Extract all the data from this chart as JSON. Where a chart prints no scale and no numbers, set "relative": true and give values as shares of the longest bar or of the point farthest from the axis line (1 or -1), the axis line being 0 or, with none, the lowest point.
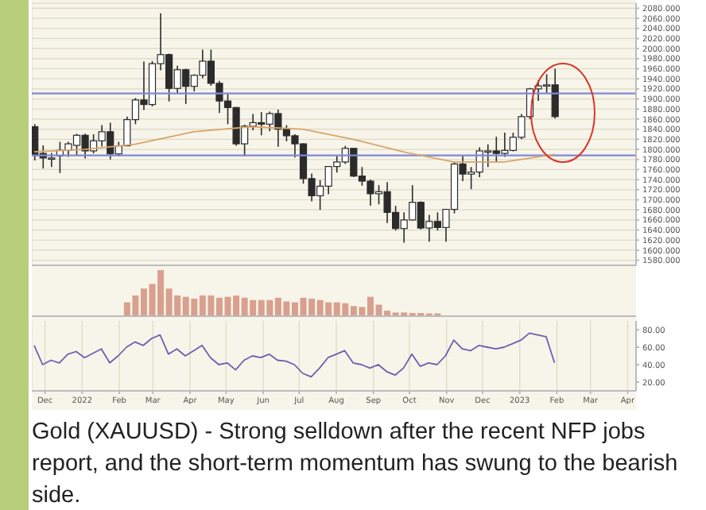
{
  "chart_data": [
    {
      "type": "candlestick",
      "x": [
        "2021-11-22",
        "2021-11-29",
        "2021-12-06",
        "2021-12-13",
        "2021-12-20",
        "2021-12-27",
        "2022-01-03",
        "2022-01-10",
        "2022-01-17",
        "2022-01-24",
        "2022-01-31",
        "2022-02-07",
        "2022-02-14",
        "2022-02-21",
        "2022-02-28",
        "2022-03-07",
        "2022-03-14",
        "2022-03-21",
        "2022-03-28",
        "2022-04-04",
        "2022-04-11",
        "2022-04-18",
        "2022-04-25",
        "2022-05-02",
        "2022-05-09",
        "2022-05-16",
        "2022-05-23",
        "2022-05-30",
        "2022-06-06",
        "2022-06-13",
        "2022-06-20",
        "2022-06-27",
        "2022-07-04",
        "2022-07-11",
        "2022-07-18",
        "2022-07-25",
        "2022-08-01",
        "2022-08-08",
        "2022-08-15",
        "2022-08-22",
        "2022-08-29",
        "2022-09-05",
        "2022-09-12",
        "2022-09-19",
        "2022-09-26",
        "2022-10-03",
        "2022-10-10",
        "2022-10-17",
        "2022-10-24",
        "2022-10-31",
        "2022-11-07",
        "2022-11-14",
        "2022-11-21",
        "2022-11-28",
        "2022-12-05",
        "2022-12-12",
        "2022-12-19",
        "2022-12-26",
        "2023-01-02",
        "2023-01-09",
        "2023-01-16",
        "2023-01-23",
        "2023-01-30"
      ],
      "ohlc": [
        [
          1845,
          1850,
          1778,
          1788
        ],
        [
          1792,
          1808,
          1762,
          1783
        ],
        [
          1783,
          1793,
          1765,
          1783
        ],
        [
          1787,
          1815,
          1753,
          1798
        ],
        [
          1798,
          1815,
          1785,
          1811
        ],
        [
          1808,
          1831,
          1789,
          1828
        ],
        [
          1828,
          1831,
          1782,
          1797
        ],
        [
          1797,
          1830,
          1792,
          1817
        ],
        [
          1817,
          1848,
          1806,
          1835
        ],
        [
          1835,
          1853,
          1780,
          1791
        ],
        [
          1791,
          1815,
          1786,
          1807
        ],
        [
          1807,
          1865,
          1807,
          1859
        ],
        [
          1859,
          1902,
          1850,
          1898
        ],
        [
          1898,
          1974,
          1878,
          1889
        ],
        [
          1889,
          1975,
          1885,
          1970
        ],
        [
          1970,
          2070,
          1957,
          1988
        ],
        [
          1988,
          1990,
          1895,
          1921
        ],
        [
          1921,
          1966,
          1910,
          1958
        ],
        [
          1958,
          1960,
          1890,
          1925
        ],
        [
          1925,
          1949,
          1915,
          1947
        ],
        [
          1947,
          1998,
          1941,
          1975
        ],
        [
          1975,
          1998,
          1926,
          1931
        ],
        [
          1931,
          1936,
          1872,
          1896
        ],
        [
          1896,
          1910,
          1850,
          1883
        ],
        [
          1883,
          1884,
          1807,
          1811
        ],
        [
          1811,
          1849,
          1786,
          1846
        ],
        [
          1846,
          1870,
          1838,
          1853
        ],
        [
          1853,
          1874,
          1828,
          1850
        ],
        [
          1850,
          1875,
          1836,
          1871
        ],
        [
          1871,
          1879,
          1805,
          1840
        ],
        [
          1840,
          1848,
          1816,
          1827
        ],
        [
          1827,
          1830,
          1784,
          1811
        ],
        [
          1811,
          1812,
          1732,
          1742
        ],
        [
          1742,
          1752,
          1697,
          1708
        ],
        [
          1708,
          1739,
          1680,
          1727
        ],
        [
          1727,
          1767,
          1711,
          1766
        ],
        [
          1766,
          1788,
          1754,
          1775
        ],
        [
          1775,
          1807,
          1771,
          1802
        ],
        [
          1802,
          1802,
          1745,
          1747
        ],
        [
          1747,
          1765,
          1728,
          1737
        ],
        [
          1737,
          1740,
          1688,
          1712
        ],
        [
          1712,
          1729,
          1691,
          1716
        ],
        [
          1716,
          1735,
          1654,
          1675
        ],
        [
          1675,
          1688,
          1639,
          1643
        ],
        [
          1643,
          1675,
          1615,
          1660
        ],
        [
          1660,
          1729,
          1659,
          1695
        ],
        [
          1695,
          1697,
          1641,
          1644
        ],
        [
          1644,
          1670,
          1617,
          1657
        ],
        [
          1657,
          1675,
          1639,
          1645
        ],
        [
          1645,
          1681,
          1617,
          1681
        ],
        [
          1681,
          1774,
          1673,
          1771
        ],
        [
          1771,
          1787,
          1737,
          1751
        ],
        [
          1751,
          1765,
          1721,
          1755
        ],
        [
          1755,
          1804,
          1745,
          1797
        ],
        [
          1797,
          1810,
          1765,
          1797
        ],
        [
          1797,
          1825,
          1774,
          1792
        ],
        [
          1792,
          1833,
          1785,
          1798
        ],
        [
          1798,
          1833,
          1796,
          1824
        ],
        [
          1824,
          1870,
          1820,
          1865
        ],
        [
          1865,
          1922,
          1860,
          1920
        ],
        [
          1920,
          1937,
          1896,
          1926
        ],
        [
          1926,
          1949,
          1912,
          1928
        ],
        [
          1928,
          1960,
          1861,
          1865
        ]
      ],
      "color": "#2b2b2b",
      "series": [
        {
          "type": "line",
          "x": [
            "2021-11-22",
            "2022-01-03",
            "2022-02-14",
            "2022-04-04",
            "2022-05-23",
            "2022-07-04",
            "2022-08-15",
            "2022-09-26",
            "2022-11-07",
            "2022-12-19",
            "2023-01-30"
          ],
          "values": [
            1795,
            1800,
            1810,
            1835,
            1845,
            1840,
            1820,
            1795,
            1775,
            1775,
            1790
          ],
          "color": "#d8a46a"
        }
      ],
      "xlim": [
        "2021-11-20",
        "2023-04-08"
      ],
      "xticks": [
        {
          "value": "2021-12-01",
          "label": null
        },
        {
          "value": "2022-01-01",
          "label": null
        },
        {
          "value": "2022-02-01",
          "label": null
        },
        {
          "value": "2022-03-01",
          "label": null
        },
        {
          "value": "2022-04-01",
          "label": null
        },
        {
          "value": "2022-05-01",
          "label": null
        },
        {
          "value": "2022-06-01",
          "label": null
        },
        {
          "value": "2022-07-01",
          "label": null
        },
        {
          "value": "2022-08-01",
          "label": null
        },
        {
          "value": "2022-09-01",
          "label": null
        },
        {
          "value": "2022-10-01",
          "label": null
        },
        {
          "value": "2022-11-01",
          "label": null
        },
        {
          "value": "2022-12-01",
          "label": null
        },
        {
          "value": "2023-01-01",
          "label": null
        },
        {
          "value": "2023-02-01",
          "label": null
        },
        {
          "value": "2023-03-01",
          "label": null
        },
        {
          "value": "2023-04-01",
          "label": null
        }
      ],
      "ylim": [
        1570,
        2090
      ],
      "yticks": [
        {
          "value": 1580,
          "label": "1580.000"
        },
        {
          "value": 1600,
          "label": "1600.000"
        },
        {
          "value": 1620,
          "label": "1620.000"
        },
        {
          "value": 1640,
          "label": "1640.000"
        },
        {
          "value": 1660,
          "label": "1660.000"
        },
        {
          "value": 1680,
          "label": "1680.000"
        },
        {
          "value": 1700,
          "label": "1700.000"
        },
        {
          "value": 1720,
          "label": "1720.000"
        },
        {
          "value": 1740,
          "label": "1740.000"
        },
        {
          "value": 1760,
          "label": "1760.000"
        },
        {
          "value": 1780,
          "label": "1780.000"
        },
        {
          "value": 1800,
          "label": "1800.000"
        },
        {
          "value": 1820,
          "label": "1820.000"
        },
        {
          "value": 1840,
          "label": "1840.000"
        },
        {
          "value": 1860,
          "label": "1860.000"
        },
        {
          "value": 1880,
          "label": "1880.000"
        },
        {
          "value": 1900,
          "label": "1900.000"
        },
        {
          "value": 1920,
          "label": "1920.000"
        },
        {
          "value": 1940,
          "label": "1940.000"
        },
        {
          "value": 1960,
          "label": "1960.000"
        },
        {
          "value": 1980,
          "label": "1980.000"
        },
        {
          "value": 2000,
          "label": "2000.000"
        },
        {
          "value": 2020,
          "label": "2020.000"
        },
        {
          "value": 2040,
          "label": "2040.000"
        },
        {
          "value": 2060,
          "label": "2060.000"
        },
        {
          "value": 2080,
          "label": "2080.000"
        }
      ],
      "ref_lines": [
        {
          "axis": "y",
          "value": 1911,
          "color": "#8088d8"
        },
        {
          "axis": "y",
          "value": 1788,
          "color": "#8088d8"
        }
      ],
      "tick_labels": "y",
      "grid": true,
      "legend": false
    },
    {
      "type": "bar",
      "relative": true,
      "color": "#d9a08f",
      "x": [
        "2022-02-07",
        "2022-02-14",
        "2022-02-21",
        "2022-02-28",
        "2022-03-07",
        "2022-03-14",
        "2022-03-21",
        "2022-03-28",
        "2022-04-04",
        "2022-04-11",
        "2022-04-18",
        "2022-04-25",
        "2022-05-02",
        "2022-05-09",
        "2022-05-16",
        "2022-05-23",
        "2022-05-30",
        "2022-06-06",
        "2022-06-13",
        "2022-06-20",
        "2022-06-27",
        "2022-07-04",
        "2022-07-11",
        "2022-07-18",
        "2022-07-25",
        "2022-08-01",
        "2022-08-08",
        "2022-08-15",
        "2022-08-22",
        "2022-08-29",
        "2022-09-05",
        "2022-09-12",
        "2022-09-19",
        "2022-09-26",
        "2022-10-03",
        "2022-10-10",
        "2022-10-17",
        "2022-10-24"
      ],
      "values": [
        0.3,
        0.45,
        0.6,
        0.7,
        1,
        0.6,
        0.45,
        0.42,
        0.38,
        0.45,
        0.45,
        0.4,
        0.42,
        0.45,
        0.4,
        0.35,
        0.35,
        0.35,
        0.4,
        0.32,
        0.3,
        0.4,
        0.38,
        0.35,
        0.3,
        0.3,
        0.28,
        0.22,
        0.2,
        0.42,
        0.25,
        0.12,
        0.08,
        0.08,
        0.07,
        0.07,
        0.06,
        0.06
      ],
      "xlim": [
        "2021-11-20",
        "2023-04-08"
      ],
      "tick_labels": false,
      "legend": false
    },
    {
      "type": "line",
      "color": "#6f5fb0",
      "x": [
        "2021-11-22",
        "2021-11-29",
        "2021-12-06",
        "2021-12-13",
        "2021-12-20",
        "2021-12-27",
        "2022-01-03",
        "2022-01-10",
        "2022-01-17",
        "2022-01-24",
        "2022-01-31",
        "2022-02-07",
        "2022-02-14",
        "2022-02-21",
        "2022-02-28",
        "2022-03-07",
        "2022-03-14",
        "2022-03-21",
        "2022-03-28",
        "2022-04-04",
        "2022-04-11",
        "2022-04-18",
        "2022-04-25",
        "2022-05-02",
        "2022-05-09",
        "2022-05-16",
        "2022-05-23",
        "2022-05-30",
        "2022-06-06",
        "2022-06-13",
        "2022-06-20",
        "2022-06-27",
        "2022-07-04",
        "2022-07-11",
        "2022-07-18",
        "2022-07-25",
        "2022-08-01",
        "2022-08-08",
        "2022-08-15",
        "2022-08-22",
        "2022-08-29",
        "2022-09-05",
        "2022-09-12",
        "2022-09-19",
        "2022-09-26",
        "2022-10-03",
        "2022-10-10",
        "2022-10-17",
        "2022-10-24",
        "2022-10-31",
        "2022-11-07",
        "2022-11-14",
        "2022-11-21",
        "2022-11-28",
        "2022-12-05",
        "2022-12-12",
        "2022-12-19",
        "2022-12-26",
        "2023-01-02",
        "2023-01-09",
        "2023-01-16",
        "2023-01-23",
        "2023-01-30"
      ],
      "values": [
        62,
        40,
        45,
        42,
        52,
        55,
        48,
        53,
        58,
        42,
        50,
        60,
        66,
        62,
        70,
        74,
        52,
        58,
        50,
        56,
        62,
        48,
        40,
        42,
        34,
        45,
        50,
        48,
        52,
        45,
        44,
        40,
        30,
        26,
        36,
        48,
        52,
        56,
        42,
        40,
        36,
        40,
        32,
        28,
        36,
        52,
        38,
        42,
        40,
        50,
        68,
        58,
        56,
        62,
        60,
        58,
        60,
        64,
        68,
        76,
        74,
        72,
        42
      ],
      "xlim": [
        "2021-11-20",
        "2023-04-08"
      ],
      "xticks": [
        {
          "value": "2021-12-01",
          "label": "Dec"
        },
        {
          "value": "2022-01-01",
          "label": "2022"
        },
        {
          "value": "2022-02-01",
          "label": "Feb"
        },
        {
          "value": "2022-03-01",
          "label": "Mar"
        },
        {
          "value": "2022-04-01",
          "label": "Apr"
        },
        {
          "value": "2022-05-01",
          "label": "May"
        },
        {
          "value": "2022-06-01",
          "label": "Jun"
        },
        {
          "value": "2022-07-01",
          "label": "Jul"
        },
        {
          "value": "2022-08-01",
          "label": "Aug"
        },
        {
          "value": "2022-09-01",
          "label": "Sep"
        },
        {
          "value": "2022-10-01",
          "label": "Oct"
        },
        {
          "value": "2022-11-01",
          "label": "Nov"
        },
        {
          "value": "2022-12-01",
          "label": "Dec"
        },
        {
          "value": "2023-01-01",
          "label": "2023"
        },
        {
          "value": "2023-02-01",
          "label": "Feb"
        },
        {
          "value": "2023-03-01",
          "label": "Mar"
        },
        {
          "value": "2023-04-01",
          "label": "Apr"
        }
      ],
      "ylim": [
        10,
        90
      ],
      "yticks": [
        {
          "value": 20,
          "label": "20.00"
        },
        {
          "value": 40,
          "label": "40.00"
        },
        {
          "value": 60,
          "label": "60.00"
        },
        {
          "value": 80,
          "label": "80.00"
        }
      ],
      "grid": "x",
      "legend": false,
      "annotations": [
        "Gold (XAUUSD) - Strong selldown after the recent NFP jobs report, and the short-term momentum has swung to the bearish side."
      ]
    }
  ]
}
